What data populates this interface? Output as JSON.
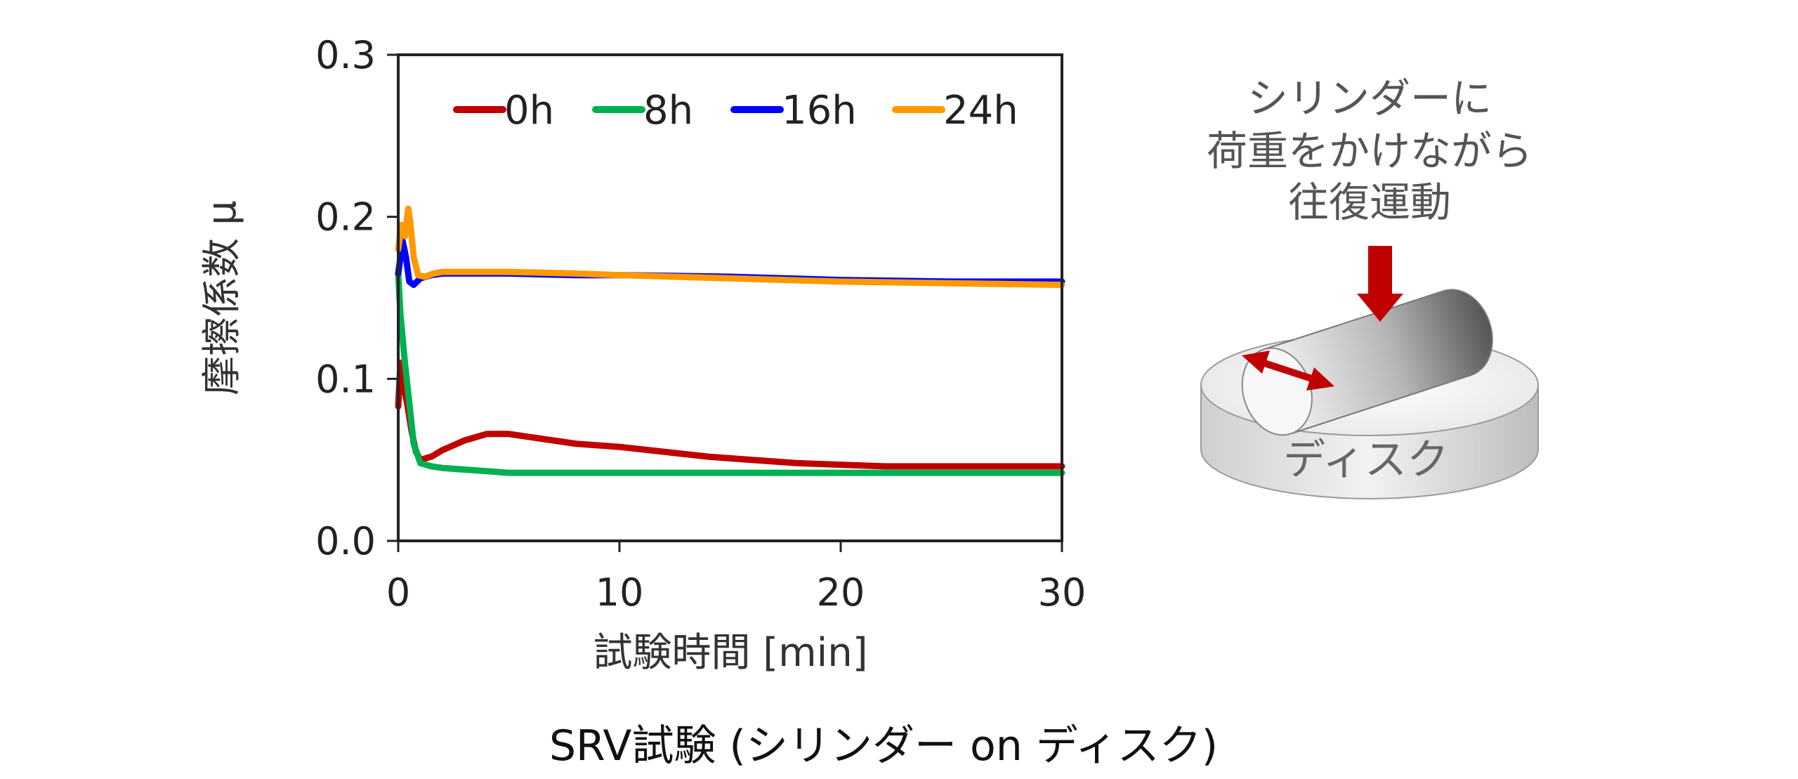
{
  "chart_data": {
    "type": "line",
    "xlabel": "試験時間 [min]",
    "ylabel": "摩擦係数 μ",
    "xlim": [
      0,
      30
    ],
    "ylim": [
      0.0,
      0.3
    ],
    "xticks": [
      "0",
      "10",
      "20",
      "30"
    ],
    "yticks": [
      "0.0",
      "0.1",
      "0.2",
      "0.3"
    ],
    "legend_position": "top",
    "series": [
      {
        "name": "0h",
        "color": "#c00000",
        "x": [
          0,
          0.1,
          0.25,
          0.4,
          0.6,
          0.8,
          1.0,
          1.5,
          2,
          3,
          4,
          5,
          6,
          7,
          8,
          10,
          12,
          14,
          16,
          18,
          20,
          22,
          24,
          26,
          28,
          30
        ],
        "y": [
          0.083,
          0.11,
          0.095,
          0.085,
          0.068,
          0.055,
          0.05,
          0.052,
          0.056,
          0.062,
          0.066,
          0.066,
          0.064,
          0.062,
          0.06,
          0.058,
          0.055,
          0.052,
          0.05,
          0.048,
          0.047,
          0.046,
          0.046,
          0.046,
          0.046,
          0.046
        ]
      },
      {
        "name": "8h",
        "color": "#00b050",
        "x": [
          0,
          0.1,
          0.3,
          0.5,
          0.7,
          1.0,
          1.5,
          2,
          3,
          4,
          5,
          6,
          8,
          10,
          15,
          20,
          25,
          30
        ],
        "y": [
          0.165,
          0.14,
          0.11,
          0.085,
          0.06,
          0.048,
          0.046,
          0.045,
          0.044,
          0.043,
          0.042,
          0.042,
          0.042,
          0.042,
          0.042,
          0.042,
          0.042,
          0.042
        ]
      },
      {
        "name": "16h",
        "color": "#0000ff",
        "x": [
          0,
          0.2,
          0.35,
          0.5,
          0.7,
          1.0,
          1.5,
          2,
          3,
          5,
          8,
          10,
          15,
          20,
          25,
          30
        ],
        "y": [
          0.165,
          0.185,
          0.175,
          0.16,
          0.158,
          0.162,
          0.164,
          0.165,
          0.165,
          0.165,
          0.164,
          0.164,
          0.163,
          0.161,
          0.16,
          0.16
        ]
      },
      {
        "name": "24h",
        "color": "#ff9900",
        "x": [
          0,
          0.15,
          0.3,
          0.45,
          0.55,
          0.7,
          0.9,
          1.2,
          1.6,
          2,
          3,
          5,
          8,
          10,
          15,
          20,
          25,
          30
        ],
        "y": [
          0.18,
          0.195,
          0.188,
          0.205,
          0.196,
          0.175,
          0.164,
          0.163,
          0.165,
          0.166,
          0.166,
          0.166,
          0.165,
          0.164,
          0.162,
          0.16,
          0.159,
          0.158
        ]
      }
    ]
  },
  "illustration": {
    "annotation_lines": [
      "シリンダーに",
      "荷重をかけながら",
      "往復運動"
    ],
    "disk_label": "ディスク",
    "arrow_color": "#c00000"
  },
  "caption": "SRV試験 (シリンダー on ディスク)"
}
